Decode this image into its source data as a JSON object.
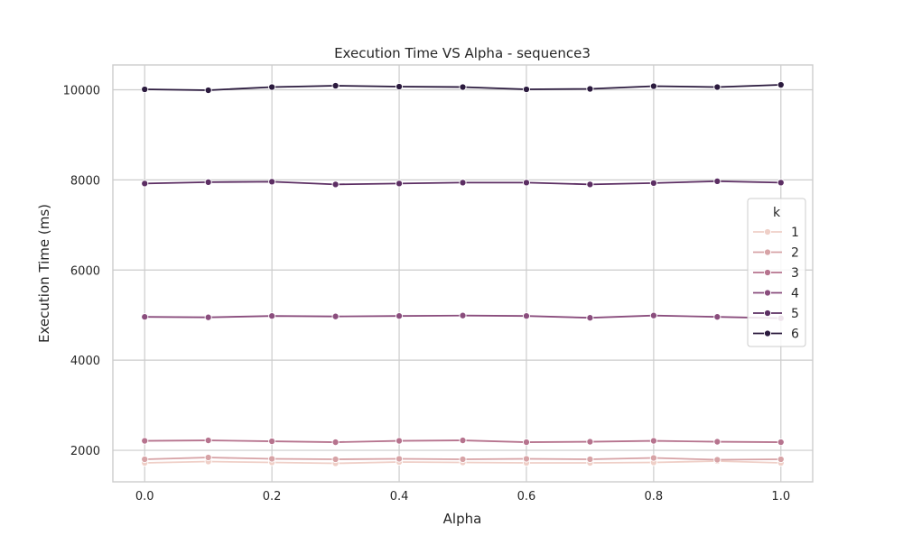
{
  "chart_data": {
    "type": "line",
    "title": "Execution Time VS Alpha - sequence3",
    "xlabel": "Alpha",
    "ylabel": "Execution Time (ms)",
    "xlim": [
      -0.05,
      1.05
    ],
    "ylim": [
      1300,
      10550
    ],
    "x": [
      0.0,
      0.1,
      0.2,
      0.3,
      0.4,
      0.5,
      0.6,
      0.7,
      0.8,
      0.9,
      1.0
    ],
    "x_ticks": [
      "0.0",
      "0.2",
      "0.4",
      "0.6",
      "0.8",
      "1.0"
    ],
    "y_ticks": [
      "2000",
      "4000",
      "6000",
      "8000",
      "10000"
    ],
    "grid": true,
    "legend": {
      "title": "k",
      "placement": "right"
    },
    "series": [
      {
        "name": "1",
        "color": "#efcfc7",
        "values": [
          1720,
          1750,
          1730,
          1710,
          1740,
          1730,
          1720,
          1720,
          1730,
          1760,
          1720
        ]
      },
      {
        "name": "2",
        "color": "#d7a3a6",
        "values": [
          1800,
          1840,
          1810,
          1800,
          1810,
          1800,
          1810,
          1800,
          1830,
          1790,
          1800
        ]
      },
      {
        "name": "3",
        "color": "#b6738e",
        "values": [
          2210,
          2220,
          2200,
          2180,
          2210,
          2220,
          2180,
          2190,
          2210,
          2190,
          2180
        ]
      },
      {
        "name": "4",
        "color": "#8a4d7d",
        "values": [
          4960,
          4950,
          4980,
          4970,
          4980,
          4990,
          4980,
          4940,
          4990,
          4960,
          4930
        ]
      },
      {
        "name": "5",
        "color": "#5c2e63",
        "values": [
          7920,
          7950,
          7960,
          7900,
          7920,
          7940,
          7940,
          7900,
          7930,
          7970,
          7940
        ]
      },
      {
        "name": "6",
        "color": "#2b1a3e",
        "values": [
          10010,
          9990,
          10060,
          10090,
          10070,
          10060,
          10010,
          10020,
          10080,
          10060,
          10110
        ]
      }
    ]
  }
}
